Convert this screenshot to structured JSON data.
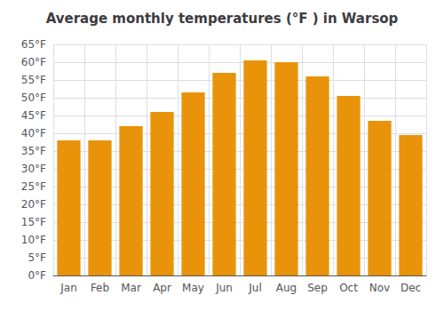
{
  "chart_data": {
    "type": "bar",
    "title": "Average monthly temperatures (°F ) in Warsop",
    "categories": [
      "Jan",
      "Feb",
      "Mar",
      "Apr",
      "May",
      "Jun",
      "Jul",
      "Aug",
      "Sep",
      "Oct",
      "Nov",
      "Dec"
    ],
    "values": [
      38,
      38,
      42,
      46,
      51.5,
      57,
      60.5,
      60,
      56,
      50.5,
      43.5,
      39.5
    ],
    "color": "#E8930A",
    "ylim": [
      0,
      65
    ],
    "yticks": [
      {
        "value": 0,
        "label": "0°F"
      },
      {
        "value": 5,
        "label": "5°F"
      },
      {
        "value": 10,
        "label": "10°F"
      },
      {
        "value": 15,
        "label": "15°F"
      },
      {
        "value": 20,
        "label": "20°F"
      },
      {
        "value": 25,
        "label": "25°F"
      },
      {
        "value": 30,
        "label": "30°F"
      },
      {
        "value": 35,
        "label": "35°F"
      },
      {
        "value": 40,
        "label": "40°F"
      },
      {
        "value": 45,
        "label": "45°F"
      },
      {
        "value": 50,
        "label": "50°F"
      },
      {
        "value": 55,
        "label": "55°F"
      },
      {
        "value": 60,
        "label": "60°F"
      },
      {
        "value": 65,
        "label": "65°F"
      }
    ],
    "grid": true
  }
}
